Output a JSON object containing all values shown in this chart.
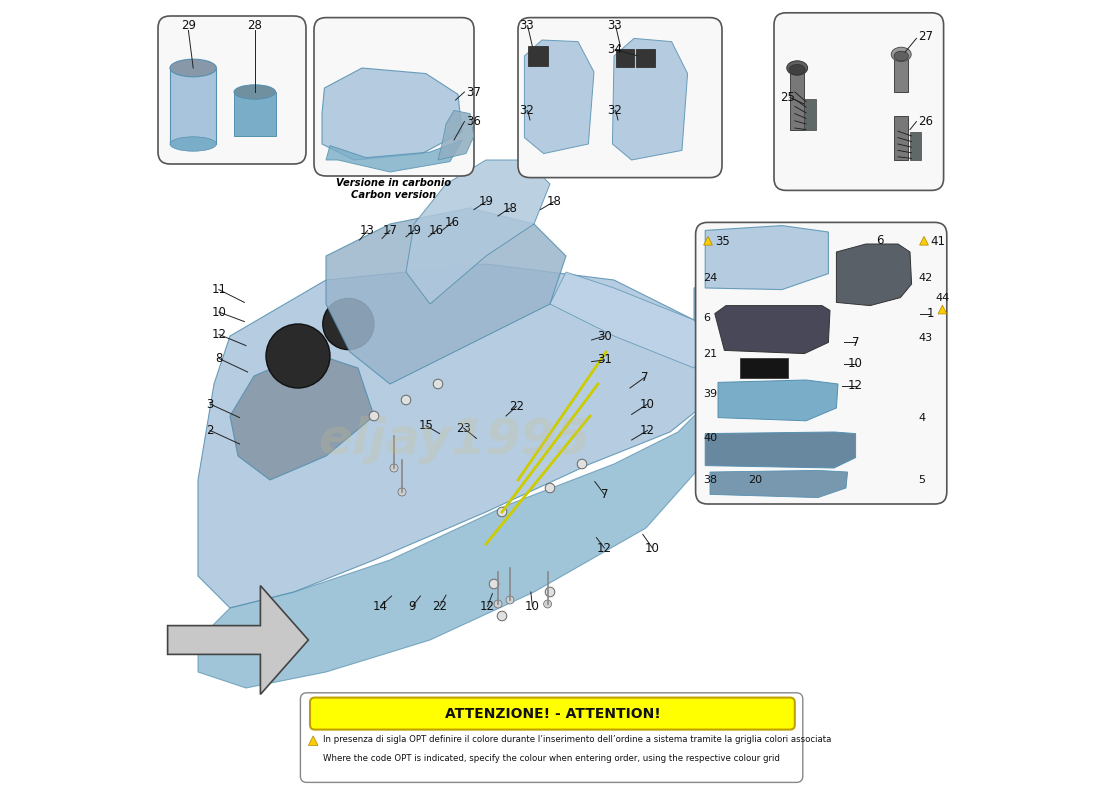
{
  "bg_color": "#ffffff",
  "warning_title": "ATTENZIONE! - ATTENTION!",
  "warning_text_it": "In presenza di sigla OPT definire il colore durante l’inserimento dell’ordine a sistema tramite la griglia colori associata",
  "warning_text_en": "Where the code OPT is indicated, specify the colour when entering order, using the respective colour grid",
  "carbon_text_it": "Versione in carbonio",
  "carbon_text_en": "Carbon version",
  "main_color_light": "#a8c4dc",
  "main_color_mid": "#7aadc8",
  "main_color_dark": "#5590b0",
  "warning_box_color": "#ffff00",
  "line_color": "#222222",
  "label_fontsize": 8.5,
  "warning_icon_color": "#ffcc00"
}
